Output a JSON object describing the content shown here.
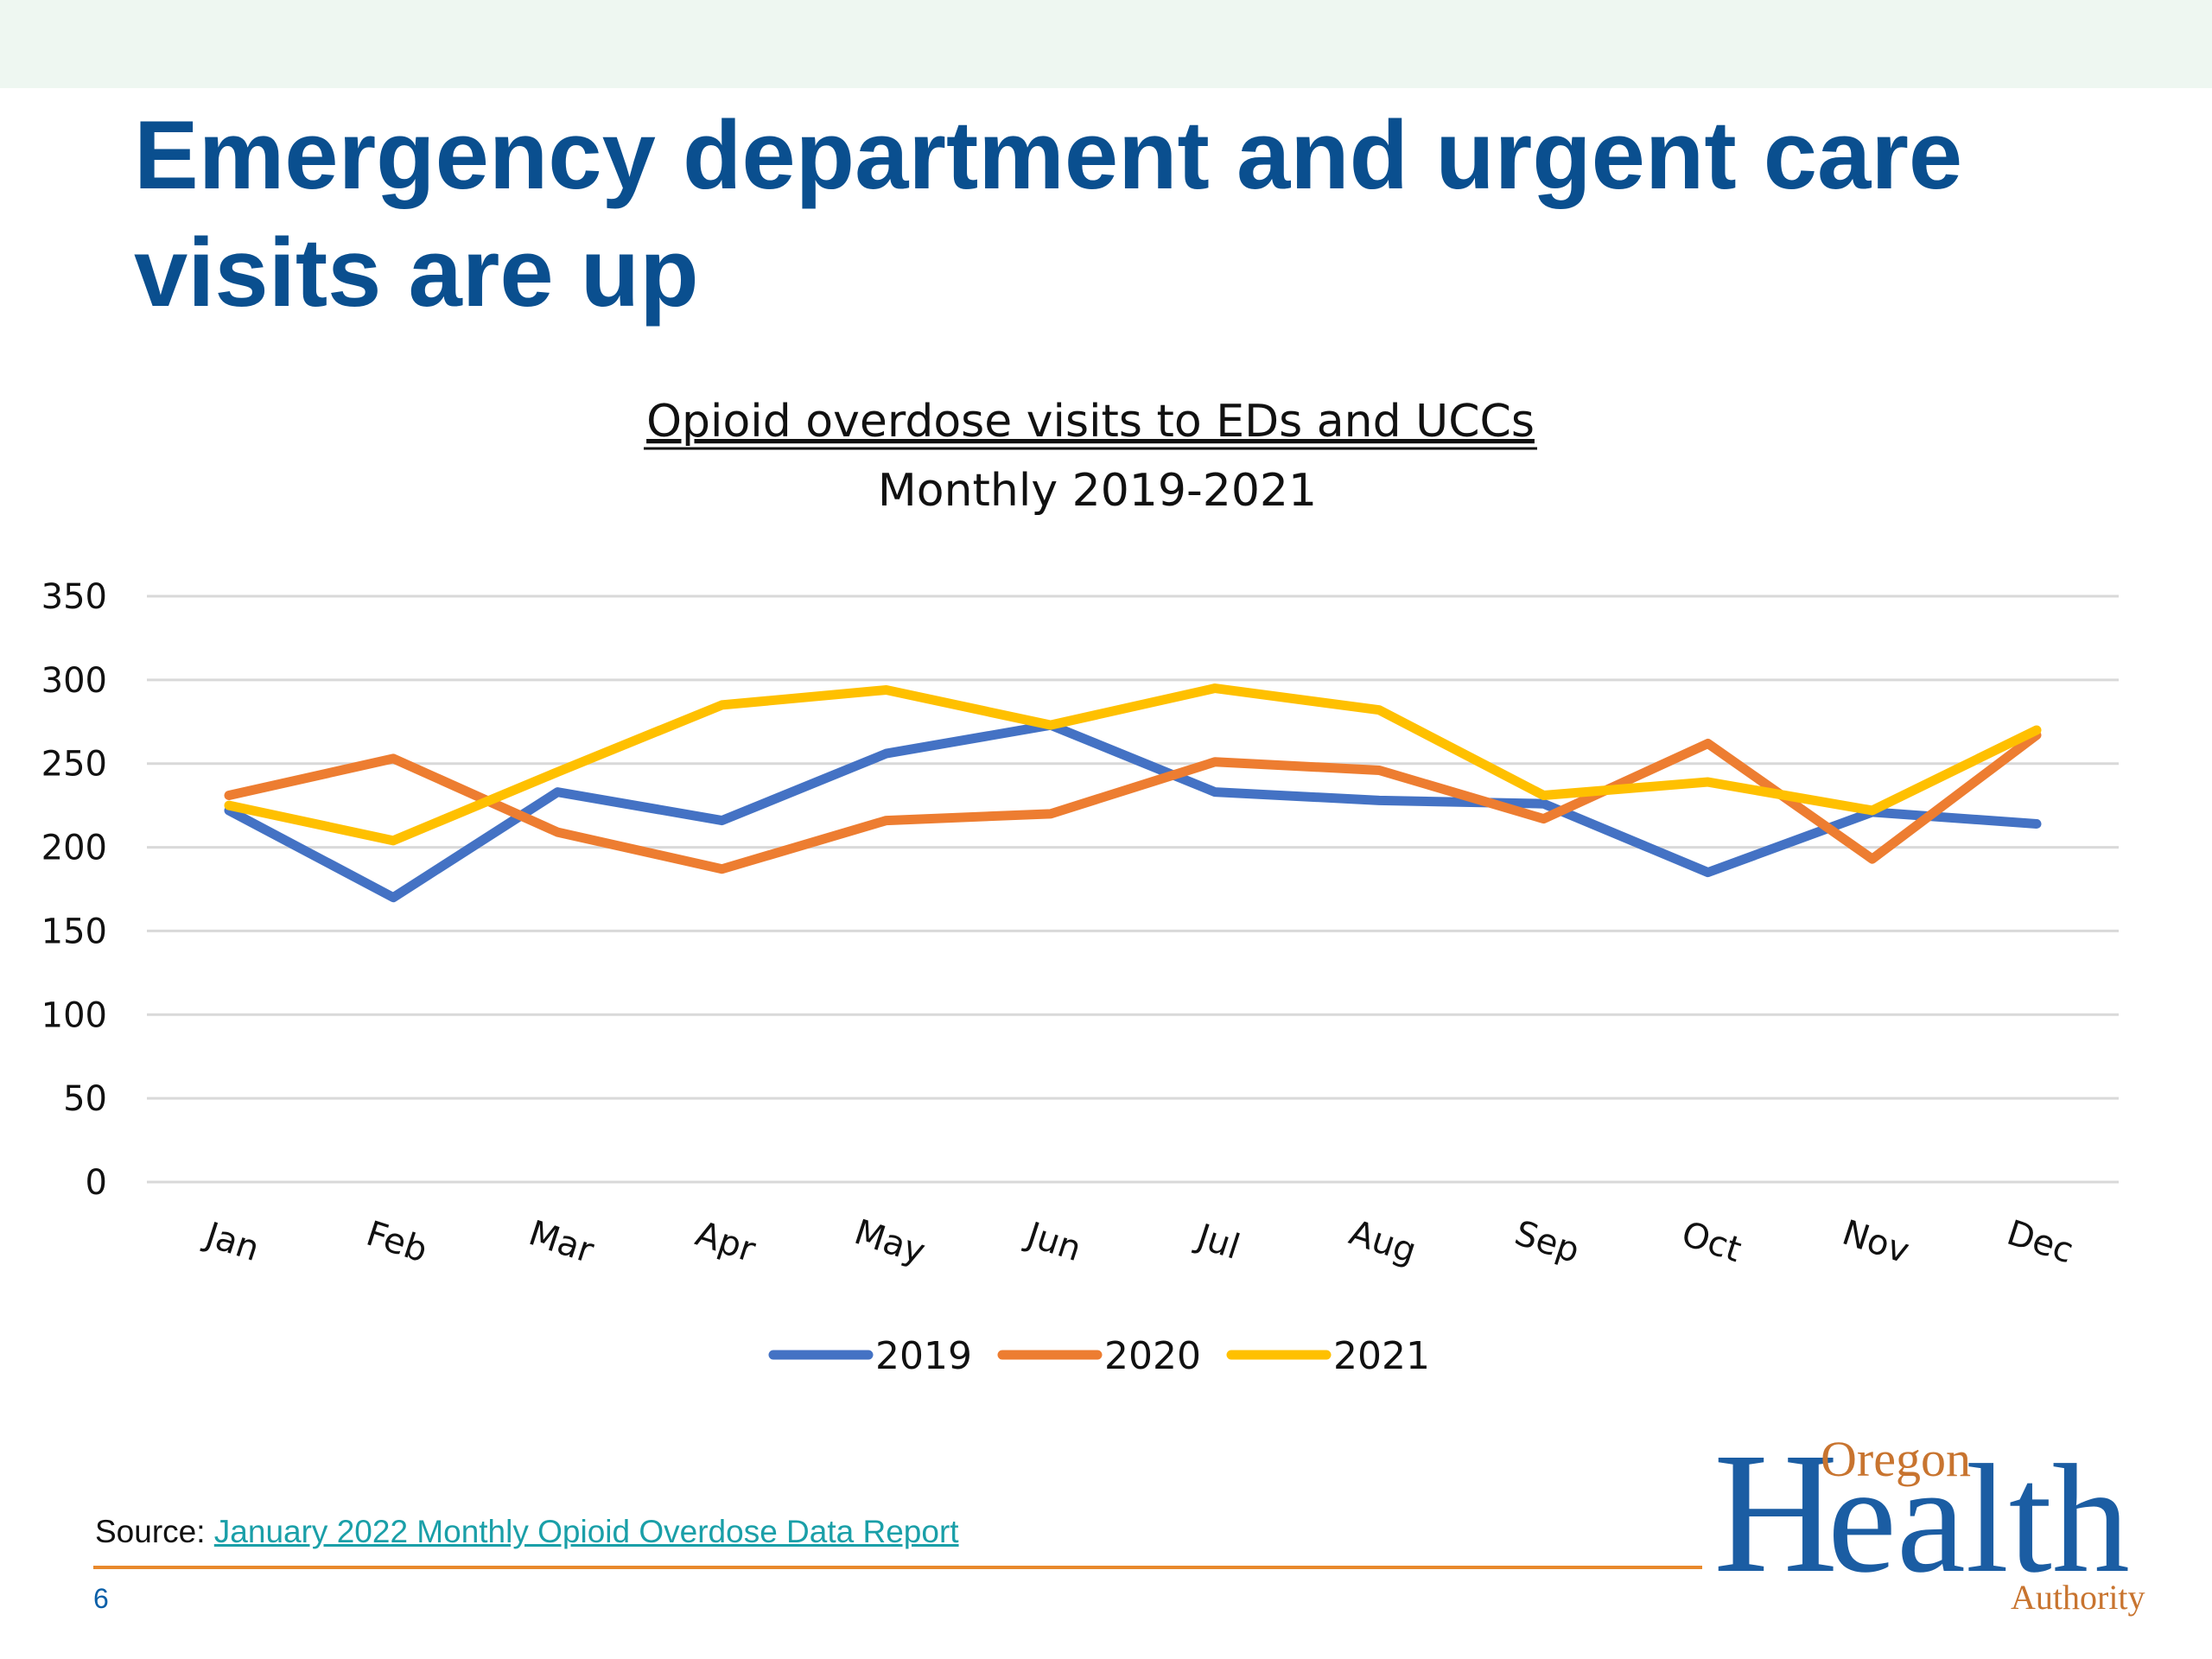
{
  "slide": {
    "title_line1": "Emergency department and urgent care",
    "title_line2": "visits are up",
    "page_number": "6"
  },
  "source": {
    "label": "Source: ",
    "link_text": "January 2022 Monthly Opioid Overdose Data Report"
  },
  "logo": {
    "text_oregon": "Oregon",
    "text_health": "Health",
    "text_authority": "Authority",
    "colors": {
      "oregon": "#c8742f",
      "health": "#1b5da3"
    }
  },
  "chart_data": {
    "type": "line",
    "title": "Opioid overdose visits to EDs and UCCs",
    "subtitle": "Monthly 2019-2021",
    "xlabel": "",
    "ylabel": "",
    "categories": [
      "Jan",
      "Feb",
      "Mar",
      "Apr",
      "May",
      "Jun",
      "Jul",
      "Aug",
      "Sep",
      "Oct",
      "Nov",
      "Dec"
    ],
    "ylim": [
      0,
      350
    ],
    "yticks": [
      0,
      50,
      100,
      150,
      200,
      250,
      300,
      350
    ],
    "grid": true,
    "legend_position": "bottom",
    "series": [
      {
        "name": "2019",
        "color": "#4472c4",
        "values": [
          222,
          170,
          233,
          216,
          256,
          273,
          233,
          228,
          226,
          185,
          221,
          214
        ]
      },
      {
        "name": "2020",
        "color": "#ed7d31",
        "values": [
          231,
          253,
          209,
          187,
          216,
          220,
          251,
          246,
          217,
          262,
          193,
          267
        ]
      },
      {
        "name": "2021",
        "color": "#ffc000",
        "values": [
          225,
          204,
          245,
          285,
          294,
          273,
          295,
          282,
          231,
          239,
          222,
          270
        ]
      }
    ]
  }
}
